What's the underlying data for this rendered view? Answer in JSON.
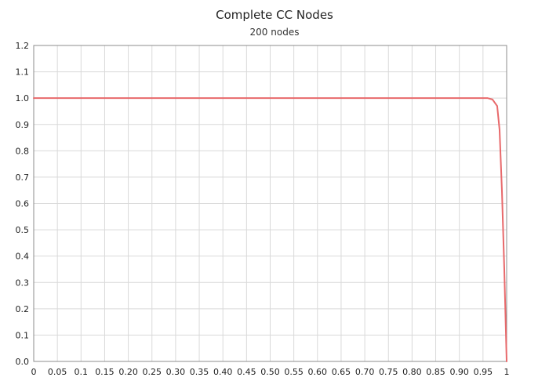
{
  "chart_data": {
    "type": "line",
    "title": "Complete CC Nodes",
    "subtitle": "200 nodes",
    "xlabel": "",
    "ylabel": "",
    "xlim": [
      0,
      1
    ],
    "ylim": [
      0,
      1.2
    ],
    "grid": true,
    "legend": "none",
    "x_ticks": [
      "0",
      "0.05",
      "0.1",
      "0.15",
      "0.20",
      "0.25",
      "0.30",
      "0.35",
      "0.40",
      "0.45",
      "0.50",
      "0.55",
      "0.60",
      "0.65",
      "0.70",
      "0.75",
      "0.80",
      "0.85",
      "0.90",
      "0.95",
      "1"
    ],
    "y_ticks": [
      "0.0",
      "0.1",
      "0.2",
      "0.3",
      "0.4",
      "0.5",
      "0.6",
      "0.7",
      "0.8",
      "0.9",
      "1.0",
      "1.1",
      "1.2"
    ],
    "series": [
      {
        "color": "#e8696b",
        "x": [
          0,
          0.96,
          0.97,
          0.98,
          0.985,
          0.99,
          0.995,
          1.0
        ],
        "y": [
          1.0,
          1.0,
          0.995,
          0.97,
          0.88,
          0.65,
          0.35,
          0.0
        ]
      }
    ]
  }
}
